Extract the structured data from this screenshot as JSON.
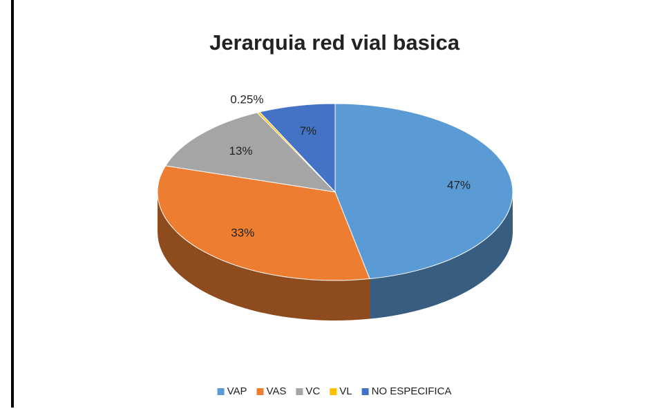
{
  "chart_data": {
    "type": "pie",
    "title": "Jerarquia red vial basica",
    "categories": [
      "VAP",
      "VAS",
      "VC",
      "VL",
      "NO ESPECIFICA"
    ],
    "values": [
      47,
      33,
      13,
      0.25,
      7
    ],
    "value_labels": [
      "47%",
      "33%",
      "13%",
      "0.25%",
      "7%"
    ],
    "colors": [
      "#5b9bd5",
      "#ed7d31",
      "#a5a5a5",
      "#ffc000",
      "#4472c4"
    ],
    "legend": "bottom"
  }
}
